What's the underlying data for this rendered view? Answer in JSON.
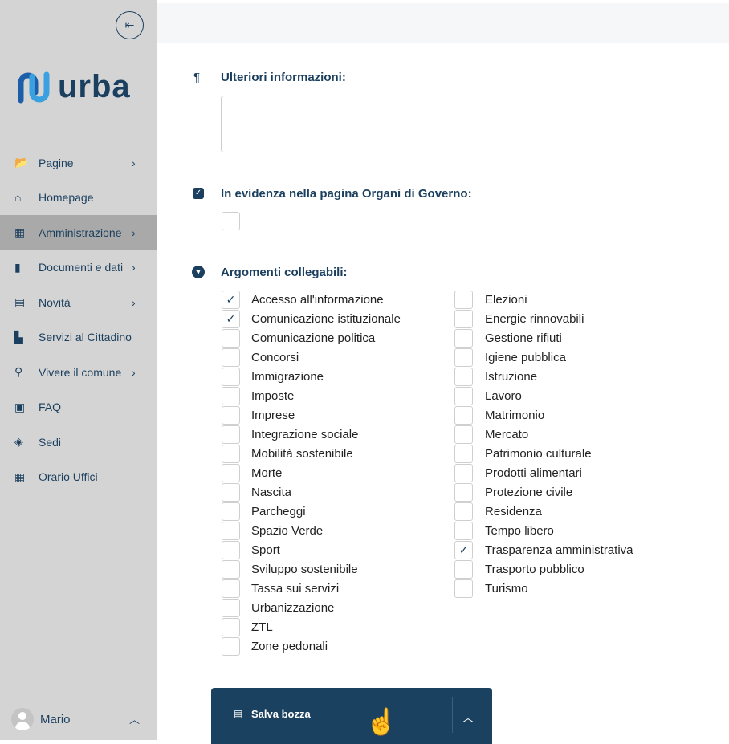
{
  "sidebar": {
    "logo": "urba",
    "collapse_icon": "arrow-left-bar-icon",
    "items": [
      {
        "label": "Pagine",
        "icon": "folder-open-icon",
        "chevron": true
      },
      {
        "label": "Homepage",
        "icon": "home-icon",
        "chevron": false
      },
      {
        "label": "Amministrazione",
        "icon": "city-icon",
        "chevron": true,
        "active": true
      },
      {
        "label": "Documenti e dati",
        "icon": "file-icon",
        "chevron": true
      },
      {
        "label": "Novità",
        "icon": "newspaper-icon",
        "chevron": true
      },
      {
        "label": "Servizi al Cittadino",
        "icon": "building-user-icon",
        "chevron": false
      },
      {
        "label": "Vivere il comune",
        "icon": "person-pin-icon",
        "chevron": true
      },
      {
        "label": "FAQ",
        "icon": "clipboard-icon",
        "chevron": false
      },
      {
        "label": "Sedi",
        "icon": "map-icon",
        "chevron": false
      },
      {
        "label": "Orario Uffici",
        "icon": "calendar-icon",
        "chevron": false
      }
    ],
    "user": "Mario"
  },
  "form": {
    "info_label": "Ulteriori informazioni:",
    "info_value": "",
    "evidenza_label": "In evidenza nella pagina Organi di Governo:",
    "evidenza_checked": false,
    "argomenti_label": "Argomenti collegabili:",
    "col1": [
      {
        "label": "Accesso all'informazione",
        "checked": true
      },
      {
        "label": "Comunicazione istituzionale",
        "checked": true
      },
      {
        "label": "Comunicazione politica",
        "checked": false
      },
      {
        "label": "Concorsi",
        "checked": false
      },
      {
        "label": "Immigrazione",
        "checked": false
      },
      {
        "label": "Imposte",
        "checked": false
      },
      {
        "label": "Imprese",
        "checked": false
      },
      {
        "label": "Integrazione sociale",
        "checked": false
      },
      {
        "label": "Mobilità sostenibile",
        "checked": false
      },
      {
        "label": "Morte",
        "checked": false
      },
      {
        "label": "Nascita",
        "checked": false
      },
      {
        "label": "Parcheggi",
        "checked": false
      },
      {
        "label": "Spazio Verde",
        "checked": false
      },
      {
        "label": "Sport",
        "checked": false
      },
      {
        "label": "Sviluppo sostenibile",
        "checked": false
      },
      {
        "label": "Tassa sui servizi",
        "checked": false
      },
      {
        "label": "Urbanizzazione",
        "checked": false
      },
      {
        "label": "ZTL",
        "checked": false
      },
      {
        "label": "Zone pedonali",
        "checked": false
      }
    ],
    "col2": [
      {
        "label": "Elezioni",
        "checked": false
      },
      {
        "label": "Energie rinnovabili",
        "checked": false
      },
      {
        "label": "Gestione rifiuti",
        "checked": false
      },
      {
        "label": "Igiene pubblica",
        "checked": false
      },
      {
        "label": "Istruzione",
        "checked": false
      },
      {
        "label": "Lavoro",
        "checked": false
      },
      {
        "label": "Matrimonio",
        "checked": false
      },
      {
        "label": "Mercato",
        "checked": false
      },
      {
        "label": "Patrimonio culturale",
        "checked": false
      },
      {
        "label": "Prodotti alimentari",
        "checked": false
      },
      {
        "label": "Protezione civile",
        "checked": false
      },
      {
        "label": "Residenza",
        "checked": false
      },
      {
        "label": "Tempo libero",
        "checked": false
      },
      {
        "label": "Trasparenza amministrativa",
        "checked": true
      },
      {
        "label": "Trasporto pubblico",
        "checked": false
      },
      {
        "label": "Turismo",
        "checked": false
      }
    ]
  },
  "save": {
    "label": "Salva bozza"
  },
  "colors": {
    "primary": "#1a4260",
    "sidebar": "#d4d4d4",
    "active": "#a9a9a9"
  }
}
